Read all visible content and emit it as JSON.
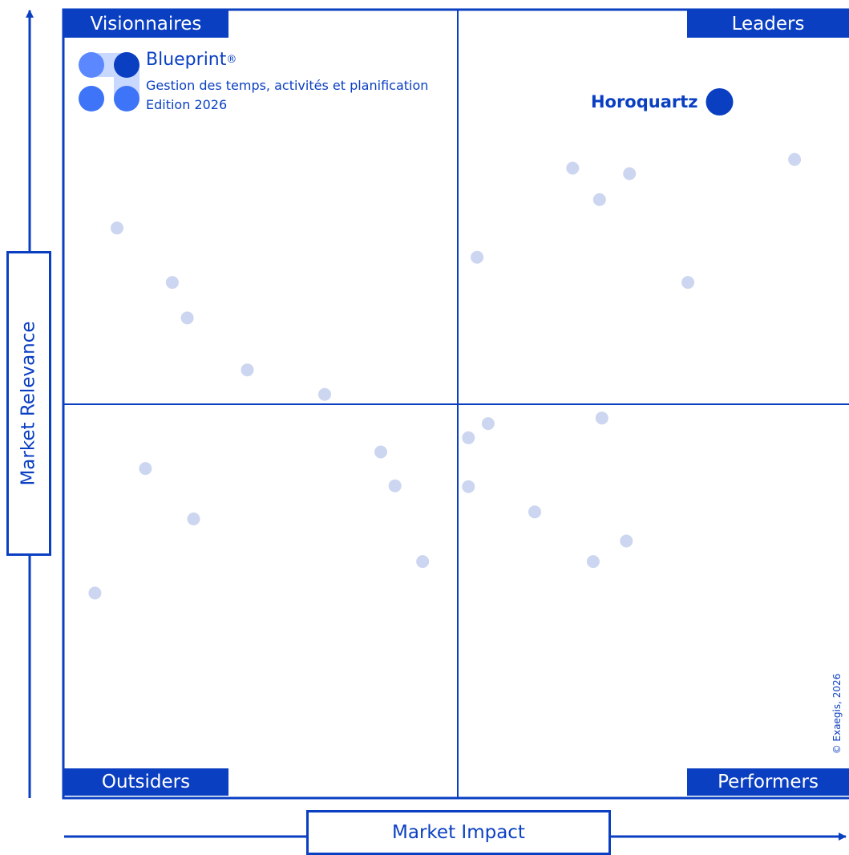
{
  "colors": {
    "brand_blue": "#0a3fc2",
    "highlight_dot": "#0a3fc2",
    "vendor_dot": "#ccd6f0",
    "logo_light": "#5b88ff",
    "logo_mid": "#3e74f7",
    "logo_dark": "#0a3fc2",
    "logo_pale": "#c9d8ff"
  },
  "logo": {
    "name": "Blueprint",
    "registered": "®",
    "subtitle": "Gestion des temps, activités et planification",
    "edition": "Edition 2026"
  },
  "copyright": "© Exaegis, 2026",
  "chart_data": {
    "type": "scatter",
    "title": "",
    "xlabel": "Market Impact",
    "ylabel": "Market Relevance",
    "xlim": [
      0,
      100
    ],
    "ylim": [
      0,
      100
    ],
    "quadrants": {
      "top_left": "Visionnaires",
      "top_right": "Leaders",
      "bottom_left": "Outsiders",
      "bottom_right": "Performers"
    },
    "highlight": {
      "label": "Horoquartz",
      "x": 83.1,
      "y": 88.3
    },
    "points": [
      {
        "x": 64.5,
        "y": 79.9
      },
      {
        "x": 71.7,
        "y": 79.2
      },
      {
        "x": 67.9,
        "y": 75.9
      },
      {
        "x": 92.6,
        "y": 81.0
      },
      {
        "x": 52.4,
        "y": 68.6
      },
      {
        "x": 79.1,
        "y": 65.4
      },
      {
        "x": 6.8,
        "y": 72.3
      },
      {
        "x": 13.8,
        "y": 65.4
      },
      {
        "x": 15.7,
        "y": 60.9
      },
      {
        "x": 23.3,
        "y": 54.3
      },
      {
        "x": 33.1,
        "y": 51.2
      },
      {
        "x": 53.8,
        "y": 47.5
      },
      {
        "x": 68.2,
        "y": 48.2
      },
      {
        "x": 51.3,
        "y": 45.7
      },
      {
        "x": 10.4,
        "y": 41.8
      },
      {
        "x": 40.2,
        "y": 43.9
      },
      {
        "x": 42.0,
        "y": 39.6
      },
      {
        "x": 51.3,
        "y": 39.5
      },
      {
        "x": 59.7,
        "y": 36.3
      },
      {
        "x": 16.5,
        "y": 35.4
      },
      {
        "x": 71.3,
        "y": 32.6
      },
      {
        "x": 45.5,
        "y": 30.0
      },
      {
        "x": 67.1,
        "y": 30.0
      },
      {
        "x": 4.0,
        "y": 26.0
      }
    ]
  }
}
